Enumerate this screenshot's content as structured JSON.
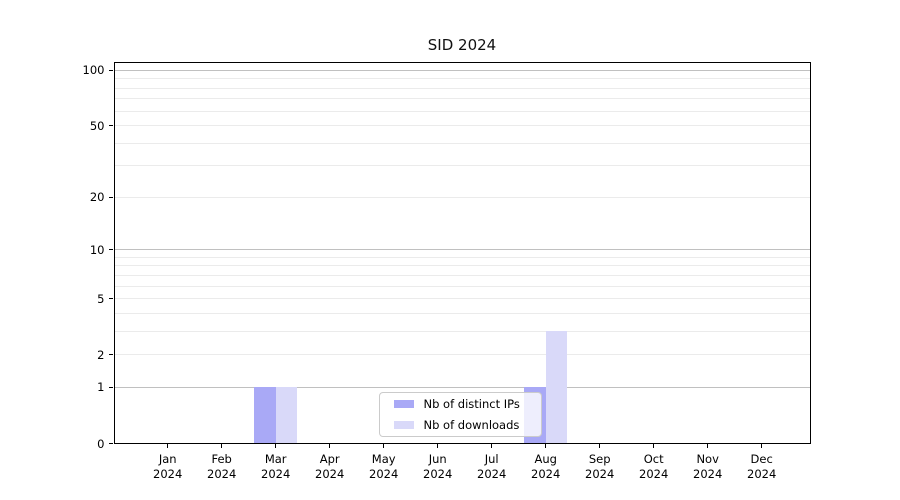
{
  "chart_data": {
    "type": "bar",
    "title": "SID 2024",
    "x": {
      "months": [
        "Jan",
        "Feb",
        "Mar",
        "Apr",
        "May",
        "Jun",
        "Jul",
        "Aug",
        "Sep",
        "Oct",
        "Nov",
        "Dec"
      ],
      "year": "2024"
    },
    "series": [
      {
        "name": "Nb of distinct IPs",
        "color": "#a9a9f6",
        "values": [
          0,
          0,
          1,
          0,
          0,
          0,
          0,
          1,
          0,
          0,
          0,
          0
        ]
      },
      {
        "name": "Nb of downloads",
        "color": "#d9d9f9",
        "values": [
          0,
          0,
          1,
          0,
          0,
          0,
          0,
          3,
          0,
          0,
          0,
          0
        ]
      }
    ],
    "y": {
      "scale": "log1p",
      "lim": [
        0,
        111
      ],
      "tick_values": [
        100,
        50,
        20,
        10,
        5,
        2,
        1,
        0
      ],
      "tick_labels": [
        "100",
        "50",
        "20",
        "10",
        "5",
        "2",
        "1",
        "0"
      ]
    },
    "grid": {
      "major_values": [
        1,
        10,
        100
      ],
      "minor_values": [
        2,
        3,
        4,
        5,
        6,
        7,
        8,
        9,
        20,
        30,
        40,
        50,
        60,
        70,
        80,
        90
      ],
      "major_color": "#c0c0c0",
      "minor_color": "#ebebeb"
    },
    "legend": {
      "position": "lower-center"
    }
  }
}
